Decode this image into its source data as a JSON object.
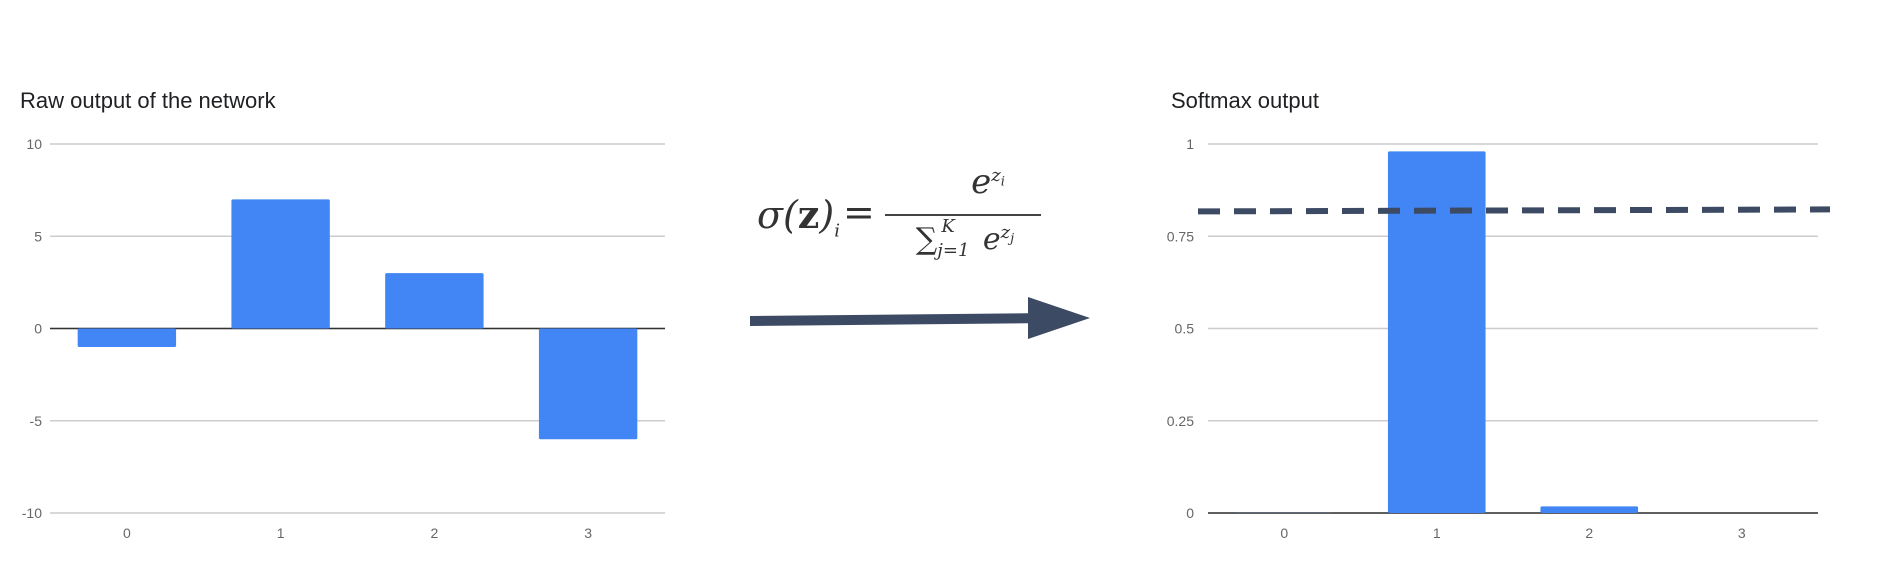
{
  "chart_data": [
    {
      "type": "bar",
      "title": "Raw output of the network",
      "categories": [
        "0",
        "1",
        "2",
        "3"
      ],
      "values": [
        -1,
        7,
        3,
        -6
      ],
      "ylim": [
        -10,
        10
      ],
      "yticks": [
        "10",
        "5",
        "0",
        "-5",
        "-10"
      ],
      "ytick_values": [
        10,
        5,
        0,
        -5,
        -10
      ],
      "bar_color": "#4285F4",
      "grid": true
    },
    {
      "type": "bar",
      "title": "Softmax output",
      "categories": [
        "0",
        "1",
        "2",
        "3"
      ],
      "values": [
        0.0003,
        0.98,
        0.018,
        2.2e-06
      ],
      "ylim": [
        0,
        1
      ],
      "yticks": [
        "1",
        "0.75",
        "0.5",
        "0.25",
        "0"
      ],
      "ytick_values": [
        1,
        0.75,
        0.5,
        0.25,
        0
      ],
      "bar_color": "#4285F4",
      "grid": true,
      "threshold_line": 0.82,
      "threshold_color": "#3c4a63"
    }
  ],
  "arrow_color": "#3c4a63"
}
